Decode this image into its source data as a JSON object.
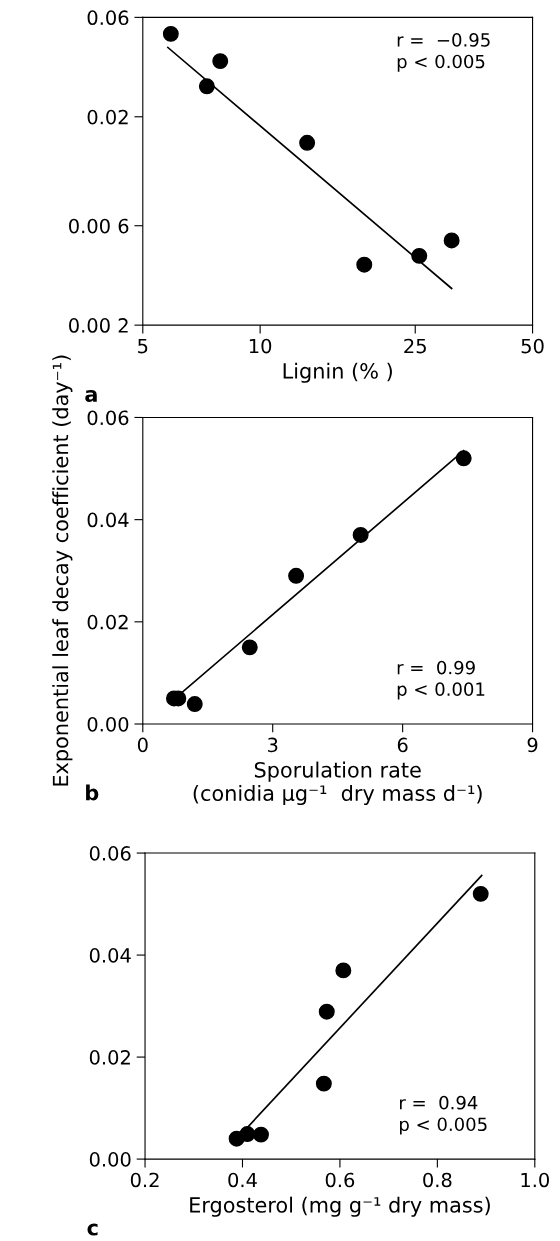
{
  "chart_data": [
    {
      "type": "scatter",
      "xlabel": "Lignin (% )",
      "log": "xy",
      "grid": false,
      "xlim": [
        5,
        50
      ],
      "xticks": [
        5,
        10,
        25,
        50
      ],
      "ylim": [
        0.002,
        0.06
      ],
      "yticks": [
        {
          "value": 0.002,
          "label": "0.00 2"
        },
        {
          "value": 0.006,
          "label": "0.00 6"
        },
        {
          "value": 0.02,
          "label": "0.02"
        },
        {
          "value": 0.06,
          "label": "0.06"
        }
      ],
      "x": [
        5.9,
        7.3,
        7.9,
        13.2,
        18.5,
        25.6,
        31
      ],
      "series": [
        {
          "color": "#000000",
          "marker": "circle",
          "values": [
            0.05,
            0.028,
            0.037,
            0.015,
            0.0039,
            0.0043,
            0.0051
          ]
        },
        {
          "type": "line",
          "color": "#000000",
          "x": [
            5.8,
            31
          ],
          "values": [
            0.043,
            0.003
          ]
        }
      ],
      "annotations": [
        "r =  −0.95\np < 0.005",
        "a"
      ]
    },
    {
      "type": "scatter",
      "xlabel": "Sporulation rate\n(conidia µg⁻¹  dry mass d⁻¹)",
      "ylabel": "Exponential leaf decay coefficient (day⁻¹)",
      "grid": false,
      "xlim": [
        0,
        9
      ],
      "xticks": [
        0,
        3,
        6,
        9
      ],
      "ylim": [
        0,
        0.06
      ],
      "yticks": [
        {
          "value": 0,
          "label": "0.00"
        },
        {
          "value": 0.02,
          "label": "0.02"
        },
        {
          "value": 0.04,
          "label": "0.04"
        },
        {
          "value": 0.06,
          "label": "0.06"
        }
      ],
      "x": [
        0.72,
        0.82,
        1.2,
        2.47,
        3.54,
        5.03,
        7.41
      ],
      "series": [
        {
          "color": "#000000",
          "marker": "circle",
          "values": [
            0.005,
            0.005,
            0.0039,
            0.015,
            0.029,
            0.037,
            0.052
          ]
        },
        {
          "type": "line",
          "color": "#000000",
          "x": [
            0.8,
            7.41
          ],
          "values": [
            0.0054,
            0.0535
          ]
        }
      ],
      "annotations": [
        "r =  0.99\np < 0.001",
        "b"
      ]
    },
    {
      "type": "scatter",
      "xlabel": "Ergosterol (mg g⁻¹ dry mass)",
      "grid": false,
      "xlim": [
        0.2,
        1.0
      ],
      "xticks": [
        {
          "value": 0.2,
          "label": "0.2"
        },
        {
          "value": 0.4,
          "label": "0.4"
        },
        {
          "value": 0.6,
          "label": "0.6"
        },
        {
          "value": 0.8,
          "label": "0.8"
        },
        {
          "value": 1.0,
          "label": "1.0"
        }
      ],
      "ylim": [
        0,
        0.06
      ],
      "yticks": [
        {
          "value": 0,
          "label": "0.00"
        },
        {
          "value": 0.02,
          "label": "0.02"
        },
        {
          "value": 0.04,
          "label": "0.04"
        },
        {
          "value": 0.06,
          "label": "0.06"
        }
      ],
      "x": [
        0.388,
        0.41,
        0.438,
        0.567,
        0.573,
        0.607,
        0.889
      ],
      "series": [
        {
          "color": "#000000",
          "marker": "circle",
          "values": [
            0.004,
            0.0049,
            0.0048,
            0.0148,
            0.0289,
            0.037,
            0.052
          ]
        },
        {
          "type": "line",
          "color": "#000000",
          "x": [
            0.41,
            0.891
          ],
          "values": [
            0.0062,
            0.0556
          ]
        }
      ],
      "annotations": [
        "r =  0.94\np < 0.005",
        "c"
      ]
    }
  ]
}
